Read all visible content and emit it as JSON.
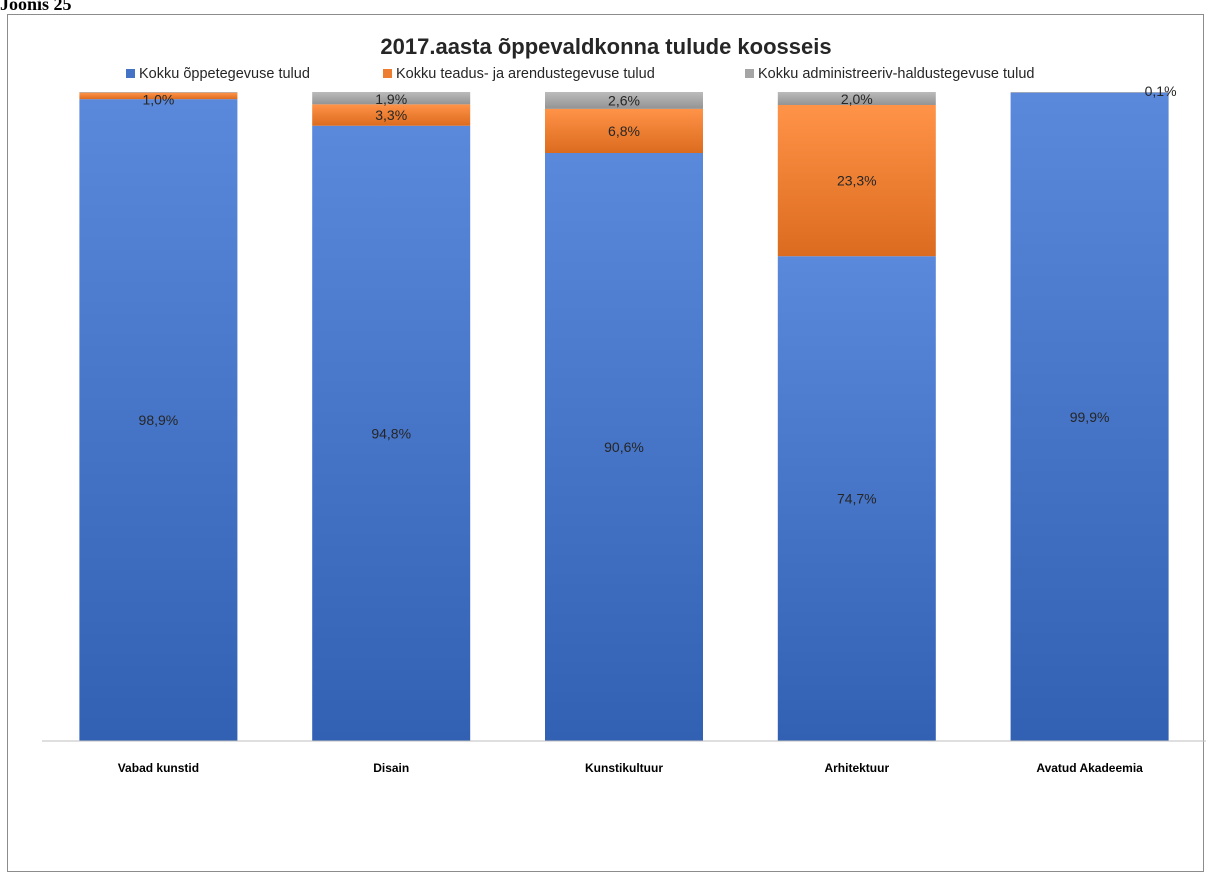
{
  "caption": "Joonis 25",
  "chart_data": {
    "type": "bar",
    "stacked": true,
    "title": "2017.aasta õppevaldkonna tulude koosseis",
    "xlabel": "",
    "ylabel": "",
    "ylim": [
      0,
      100
    ],
    "legend_position": "top",
    "grid": false,
    "categories": [
      "Vabad kunstid",
      "Disain",
      "Kunstikultuur",
      "Arhitektuur",
      "Avatud Akadeemia"
    ],
    "series": [
      {
        "name": "Kokku õppetegevuse tulud",
        "color": "#4472c4",
        "values": [
          98.9,
          94.8,
          90.6,
          74.7,
          99.9
        ],
        "labels": [
          "98,9%",
          "94,8%",
          "90,6%",
          "74,7%",
          "99,9%"
        ]
      },
      {
        "name": "Kokku teadus- ja arendustegevuse tulud",
        "color": "#ed7d31",
        "values": [
          1.0,
          3.3,
          6.8,
          23.3,
          0
        ],
        "labels": [
          "1,0%",
          "3,3%",
          "6,8%",
          "23,3%",
          ""
        ]
      },
      {
        "name": "Kokku administreeriv-haldustegevuse tulud",
        "color": "#a5a5a5",
        "values": [
          0.1,
          1.9,
          2.6,
          2.0,
          0.1
        ],
        "labels": [
          "",
          "1,9%",
          "2,6%",
          "2,0%",
          "0,1%"
        ]
      }
    ]
  }
}
